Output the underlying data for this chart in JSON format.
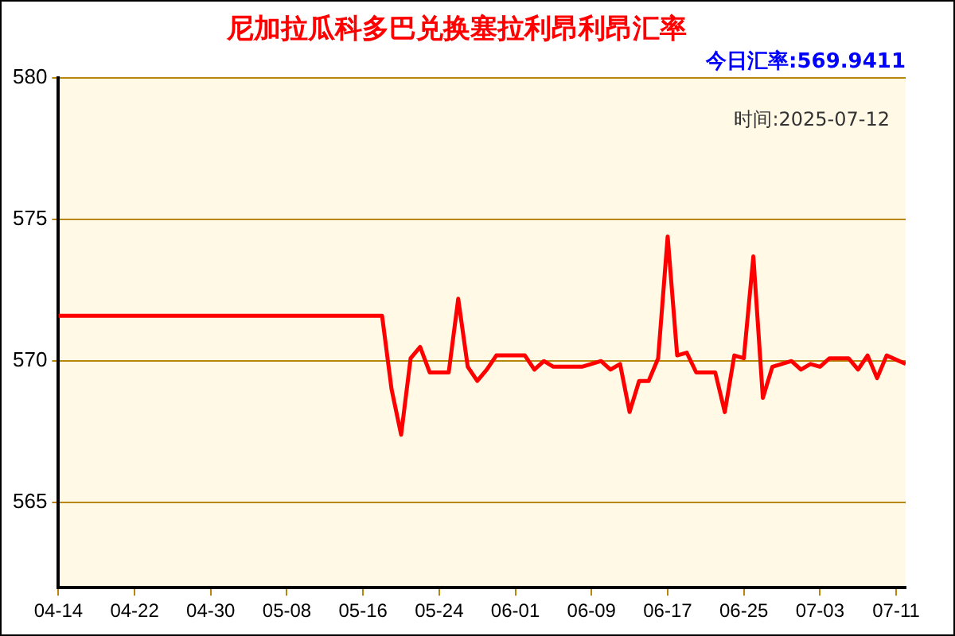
{
  "chart_data": {
    "type": "line",
    "title": "尼加拉瓜科多巴兑换塞拉利昂利昂汇率",
    "subtitle": "今日汇率:569.9411",
    "annotations": [
      "时间:2025-07-12"
    ],
    "x": [
      "2025-04-14",
      "2025-05-18",
      "2025-05-19",
      "2025-05-20",
      "2025-05-21",
      "2025-05-22",
      "2025-05-23",
      "2025-05-24",
      "2025-05-25",
      "2025-05-26",
      "2025-05-27",
      "2025-05-28",
      "2025-05-29",
      "2025-05-30",
      "2025-05-31",
      "2025-06-01",
      "2025-06-02",
      "2025-06-03",
      "2025-06-04",
      "2025-06-05",
      "2025-06-06",
      "2025-06-08",
      "2025-06-10",
      "2025-06-11",
      "2025-06-12",
      "2025-06-13",
      "2025-06-14",
      "2025-06-15",
      "2025-06-16",
      "2025-06-17",
      "2025-06-18",
      "2025-06-19",
      "2025-06-20",
      "2025-06-22",
      "2025-06-23",
      "2025-06-24",
      "2025-06-25",
      "2025-06-26",
      "2025-06-27",
      "2025-06-28",
      "2025-06-30",
      "2025-07-01",
      "2025-07-02",
      "2025-07-03",
      "2025-07-04",
      "2025-07-06",
      "2025-07-07",
      "2025-07-08",
      "2025-07-09",
      "2025-07-10",
      "2025-07-12"
    ],
    "series": [
      {
        "color": "#ff0000",
        "values": [
          571.6,
          571.6,
          569.0,
          567.4,
          570.1,
          570.5,
          569.6,
          569.6,
          569.6,
          572.2,
          569.8,
          569.3,
          569.7,
          570.2,
          570.2,
          570.2,
          570.2,
          569.7,
          570.0,
          569.8,
          569.8,
          569.8,
          570.0,
          569.7,
          569.9,
          568.2,
          569.3,
          569.3,
          570.1,
          574.4,
          570.2,
          570.3,
          569.6,
          569.6,
          568.2,
          570.2,
          570.1,
          573.7,
          568.7,
          569.8,
          570.0,
          569.7,
          569.9,
          569.8,
          570.1,
          570.1,
          569.7,
          570.2,
          569.4,
          570.2,
          569.9
        ]
      }
    ],
    "xlim": [
      "2025-04-14",
      "2025-07-12"
    ],
    "xticks": [
      {
        "value": "2025-04-14",
        "label": "04-14"
      },
      {
        "value": "2025-04-22",
        "label": "04-22"
      },
      {
        "value": "2025-04-30",
        "label": "04-30"
      },
      {
        "value": "2025-05-08",
        "label": "05-08"
      },
      {
        "value": "2025-05-16",
        "label": "05-16"
      },
      {
        "value": "2025-05-24",
        "label": "05-24"
      },
      {
        "value": "2025-06-01",
        "label": "06-01"
      },
      {
        "value": "2025-06-09",
        "label": "06-09"
      },
      {
        "value": "2025-06-17",
        "label": "06-17"
      },
      {
        "value": "2025-06-25",
        "label": "06-25"
      },
      {
        "value": "2025-07-03",
        "label": "07-03"
      },
      {
        "value": "2025-07-11",
        "label": "07-11"
      }
    ],
    "ylim": [
      562,
      580
    ],
    "yticks": [
      565,
      570,
      575,
      580
    ],
    "grid": "y",
    "legend": false,
    "marker": "none",
    "line_style": "solid"
  }
}
